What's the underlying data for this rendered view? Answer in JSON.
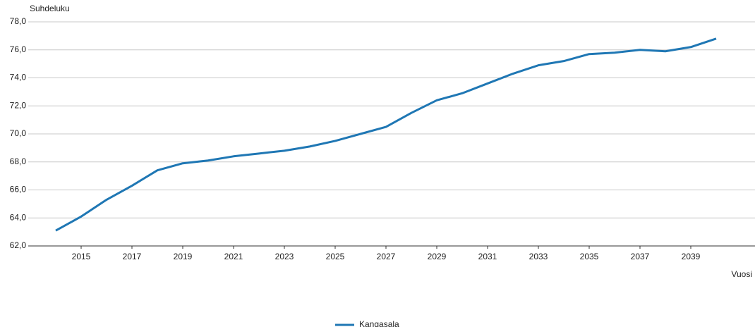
{
  "chart_data": {
    "type": "line",
    "y_label": "Suhdeluku",
    "x_label": "Vuosi",
    "x": [
      2014,
      2015,
      2016,
      2017,
      2018,
      2019,
      2020,
      2021,
      2022,
      2023,
      2024,
      2025,
      2026,
      2027,
      2028,
      2029,
      2030,
      2031,
      2032,
      2033,
      2034,
      2035,
      2036,
      2037,
      2038,
      2039,
      2040
    ],
    "series": [
      {
        "name": "Kangasala",
        "color": "#1f77b4",
        "values": [
          63.1,
          64.1,
          65.3,
          66.3,
          67.4,
          67.9,
          68.1,
          68.4,
          68.6,
          68.8,
          69.1,
          69.5,
          70.0,
          70.5,
          71.5,
          72.4,
          72.9,
          73.6,
          74.3,
          74.9,
          75.2,
          75.7,
          75.8,
          76.0,
          75.9,
          76.2,
          76.8
        ]
      }
    ],
    "xlim": [
      2013,
      2041.5
    ],
    "xticks": [
      2015,
      2017,
      2019,
      2021,
      2023,
      2025,
      2027,
      2029,
      2031,
      2033,
      2035,
      2037,
      2039
    ],
    "ylim": [
      62,
      78
    ],
    "yticks": [
      {
        "value": 62,
        "label": "62,0"
      },
      {
        "value": 64,
        "label": "64,0"
      },
      {
        "value": 66,
        "label": "66,0"
      },
      {
        "value": 68,
        "label": "68,0"
      },
      {
        "value": 70,
        "label": "70,0"
      },
      {
        "value": 72,
        "label": "72,0"
      },
      {
        "value": 74,
        "label": "74,0"
      },
      {
        "value": 76,
        "label": "76,0"
      },
      {
        "value": 78,
        "label": "78,0"
      }
    ],
    "grid": true,
    "legend": "bottom"
  }
}
